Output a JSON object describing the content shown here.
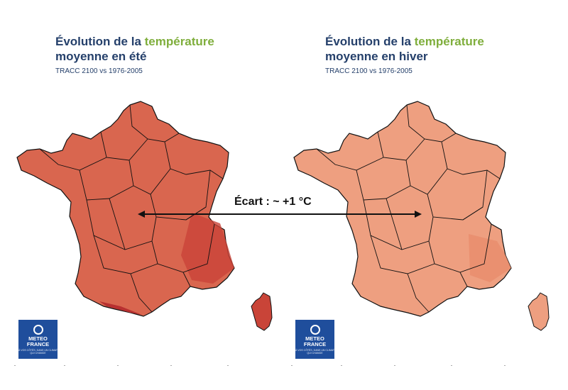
{
  "panels": [
    {
      "title_line1_a": "Évolution de la ",
      "title_line1_b": "température",
      "title_line2": "moyenne en été",
      "subtitle": "TRACC 2100 vs 1976-2005",
      "region_fill": "#d9664f",
      "region_fill_hot": "#c94438"
    },
    {
      "title_line1_a": "Évolution de la ",
      "title_line1_b": "température",
      "title_line2": "moyenne en hiver",
      "subtitle": "TRACC 2100 vs 1976-2005",
      "region_fill": "#ee9f80",
      "region_fill_hot": "#e98c6c"
    }
  ],
  "logo": {
    "line1": "METEO",
    "line2": "FRANCE",
    "tagline": "À VOS CÔTÉS, DANS UN CLIMAT QUI CHANGE",
    "color": "#1f4e9c"
  },
  "annotation": {
    "label": "Écart : ~ +1 °C"
  },
  "colors": {
    "title_blue": "#25406b",
    "title_green": "#7fae3c",
    "border": "#111111"
  }
}
